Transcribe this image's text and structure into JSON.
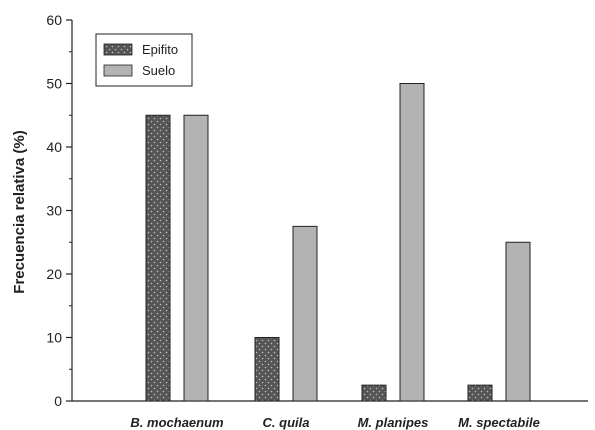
{
  "chart_data": {
    "type": "bar",
    "title": "",
    "xlabel": "",
    "ylabel": "Frecuencia relativa (%)",
    "categories": [
      "B. mochaenum",
      "C. quila",
      "M. planipes",
      "M. spectabile"
    ],
    "series": [
      {
        "name": "Epifito",
        "values": [
          45,
          10,
          2.5,
          2.5
        ],
        "color": "#555555",
        "pattern": "dotted"
      },
      {
        "name": "Suelo",
        "values": [
          45,
          27.5,
          50,
          25
        ],
        "color": "#b3b3b3",
        "pattern": "solid"
      }
    ],
    "ylim": [
      0,
      60
    ],
    "yticks": [
      0,
      10,
      20,
      30,
      40,
      50,
      60
    ],
    "grid": false,
    "legend_position": "top-left",
    "bar_stroke_color": "#222222"
  }
}
